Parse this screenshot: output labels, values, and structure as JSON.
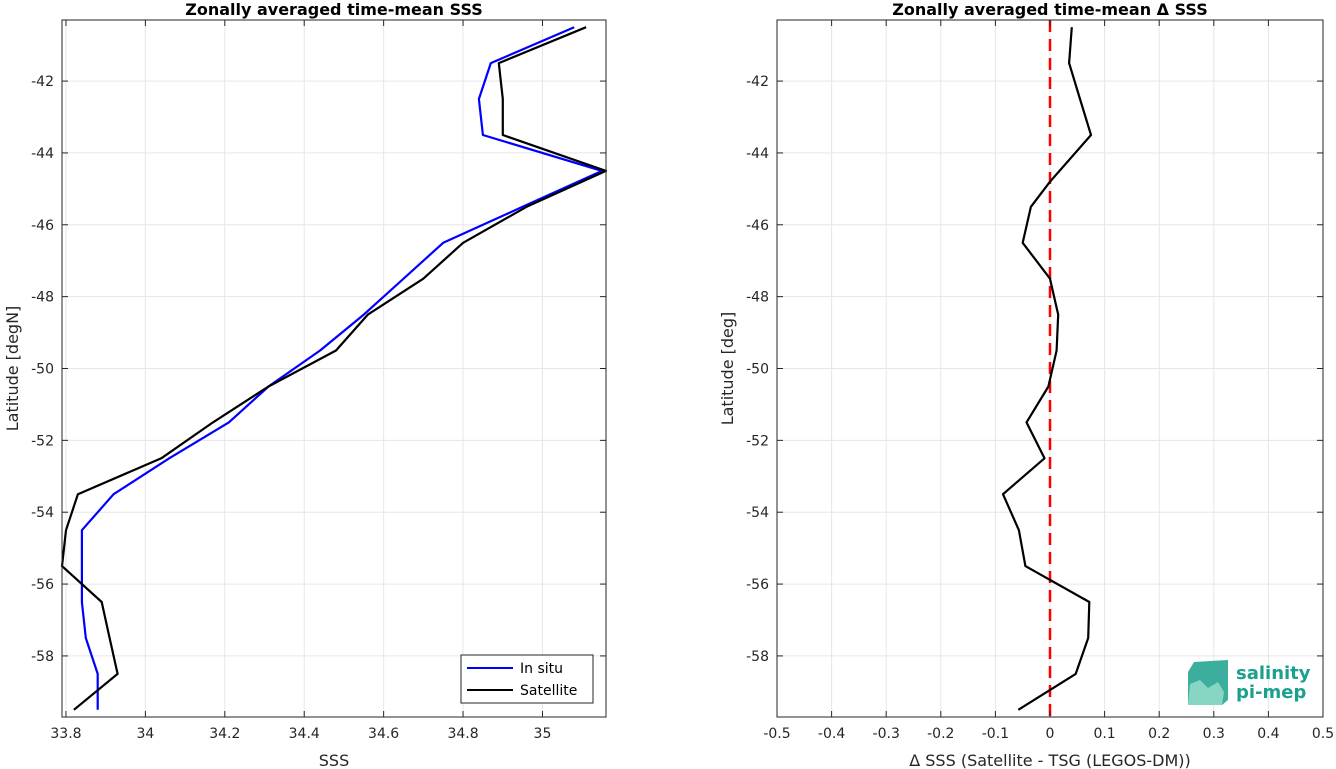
{
  "chart_data": [
    {
      "type": "line",
      "title": "Zonally averaged time-mean SSS",
      "xlabel": "SSS",
      "ylabel": "Latitude [degN]",
      "xlim": [
        33.79,
        35.16
      ],
      "ylim": [
        -59.7,
        -40.3
      ],
      "xticks": [
        33.8,
        34,
        34.2,
        34.4,
        34.6,
        34.8,
        35
      ],
      "xtick_labels": [
        "33.8",
        "34",
        "34.2",
        "34.4",
        "34.6",
        "34.8",
        "35"
      ],
      "yticks": [
        -42,
        -44,
        -46,
        -48,
        -50,
        -52,
        -54,
        -56,
        -58
      ],
      "ytick_labels": [
        "-42",
        "-44",
        "-46",
        "-48",
        "-50",
        "-52",
        "-54",
        "-56",
        "-58"
      ],
      "grid": true,
      "legend": "bottom-right",
      "series": [
        {
          "name": "In situ",
          "color": "#0000ff",
          "x": [
            35.08,
            34.87,
            34.84,
            34.85,
            35.15,
            34.95,
            34.75,
            34.55,
            34.44,
            34.31,
            34.21,
            34.06,
            33.92,
            33.84,
            33.84,
            33.84,
            33.84,
            33.85,
            33.88,
            33.88
          ],
          "y": [
            -40.5,
            -41.5,
            -42.5,
            -43.5,
            -44.5,
            -45.5,
            -46.5,
            -48.5,
            -49.5,
            -50.5,
            -51.5,
            -52.5,
            -53.5,
            -54.5,
            -55.5,
            -56.5,
            -56.5,
            -57.5,
            -58.5,
            -59.5
          ]
        },
        {
          "name": "Satellite",
          "color": "#000000",
          "x": [
            35.11,
            34.89,
            34.9,
            34.9,
            35.16,
            34.96,
            34.8,
            34.7,
            34.56,
            34.48,
            34.31,
            34.17,
            34.04,
            33.83,
            33.8,
            33.79,
            33.89,
            33.91,
            33.93,
            33.82
          ],
          "y": [
            -40.5,
            -41.5,
            -42.5,
            -43.5,
            -44.5,
            -45.5,
            -46.5,
            -47.5,
            -48.5,
            -49.5,
            -50.5,
            -51.5,
            -52.5,
            -53.5,
            -54.5,
            -55.5,
            -56.5,
            -57.5,
            -58.5,
            -59.5
          ]
        }
      ]
    },
    {
      "type": "line",
      "title": "Zonally averaged time-mean Δ SSS",
      "xlabel": "Δ SSS (Satellite - TSG (LEGOS-DM))",
      "ylabel": "Latitude [deg]",
      "xlim": [
        -0.5,
        0.5
      ],
      "ylim": [
        -59.7,
        -40.3
      ],
      "xticks": [
        -0.5,
        -0.4,
        -0.3,
        -0.2,
        -0.1,
        0,
        0.1,
        0.2,
        0.3,
        0.4,
        0.5
      ],
      "xtick_labels": [
        "-0.5",
        "-0.4",
        "-0.3",
        "-0.2",
        "-0.1",
        "0",
        "0.1",
        "0.2",
        "0.3",
        "0.4",
        "0.5"
      ],
      "yticks": [
        -42,
        -44,
        -46,
        -48,
        -50,
        -52,
        -54,
        -56,
        -58
      ],
      "ytick_labels": [
        "-42",
        "-44",
        "-46",
        "-48",
        "-50",
        "-52",
        "-54",
        "-56",
        "-58"
      ],
      "grid": true,
      "reference_line": {
        "x": 0,
        "color": "#ff0000",
        "style": "dashed"
      },
      "series": [
        {
          "color": "#000000",
          "x": [
            0.04,
            0.035,
            0.055,
            0.075,
            0.0,
            -0.035,
            -0.05,
            0.0,
            0.015,
            0.012,
            -0.003,
            -0.043,
            -0.01,
            -0.086,
            -0.057,
            -0.045,
            0.072,
            0.07,
            0.047,
            -0.058
          ],
          "y": [
            -40.5,
            -41.5,
            -42.5,
            -43.5,
            -44.8,
            -45.5,
            -46.5,
            -47.5,
            -48.5,
            -49.5,
            -50.5,
            -51.5,
            -52.5,
            -53.5,
            -54.5,
            -55.5,
            -56.5,
            -57.5,
            -58.5,
            -59.5
          ]
        }
      ]
    }
  ],
  "logo": {
    "line1": "salinity",
    "line2": "pi-mep",
    "color": "#1aa08c"
  }
}
